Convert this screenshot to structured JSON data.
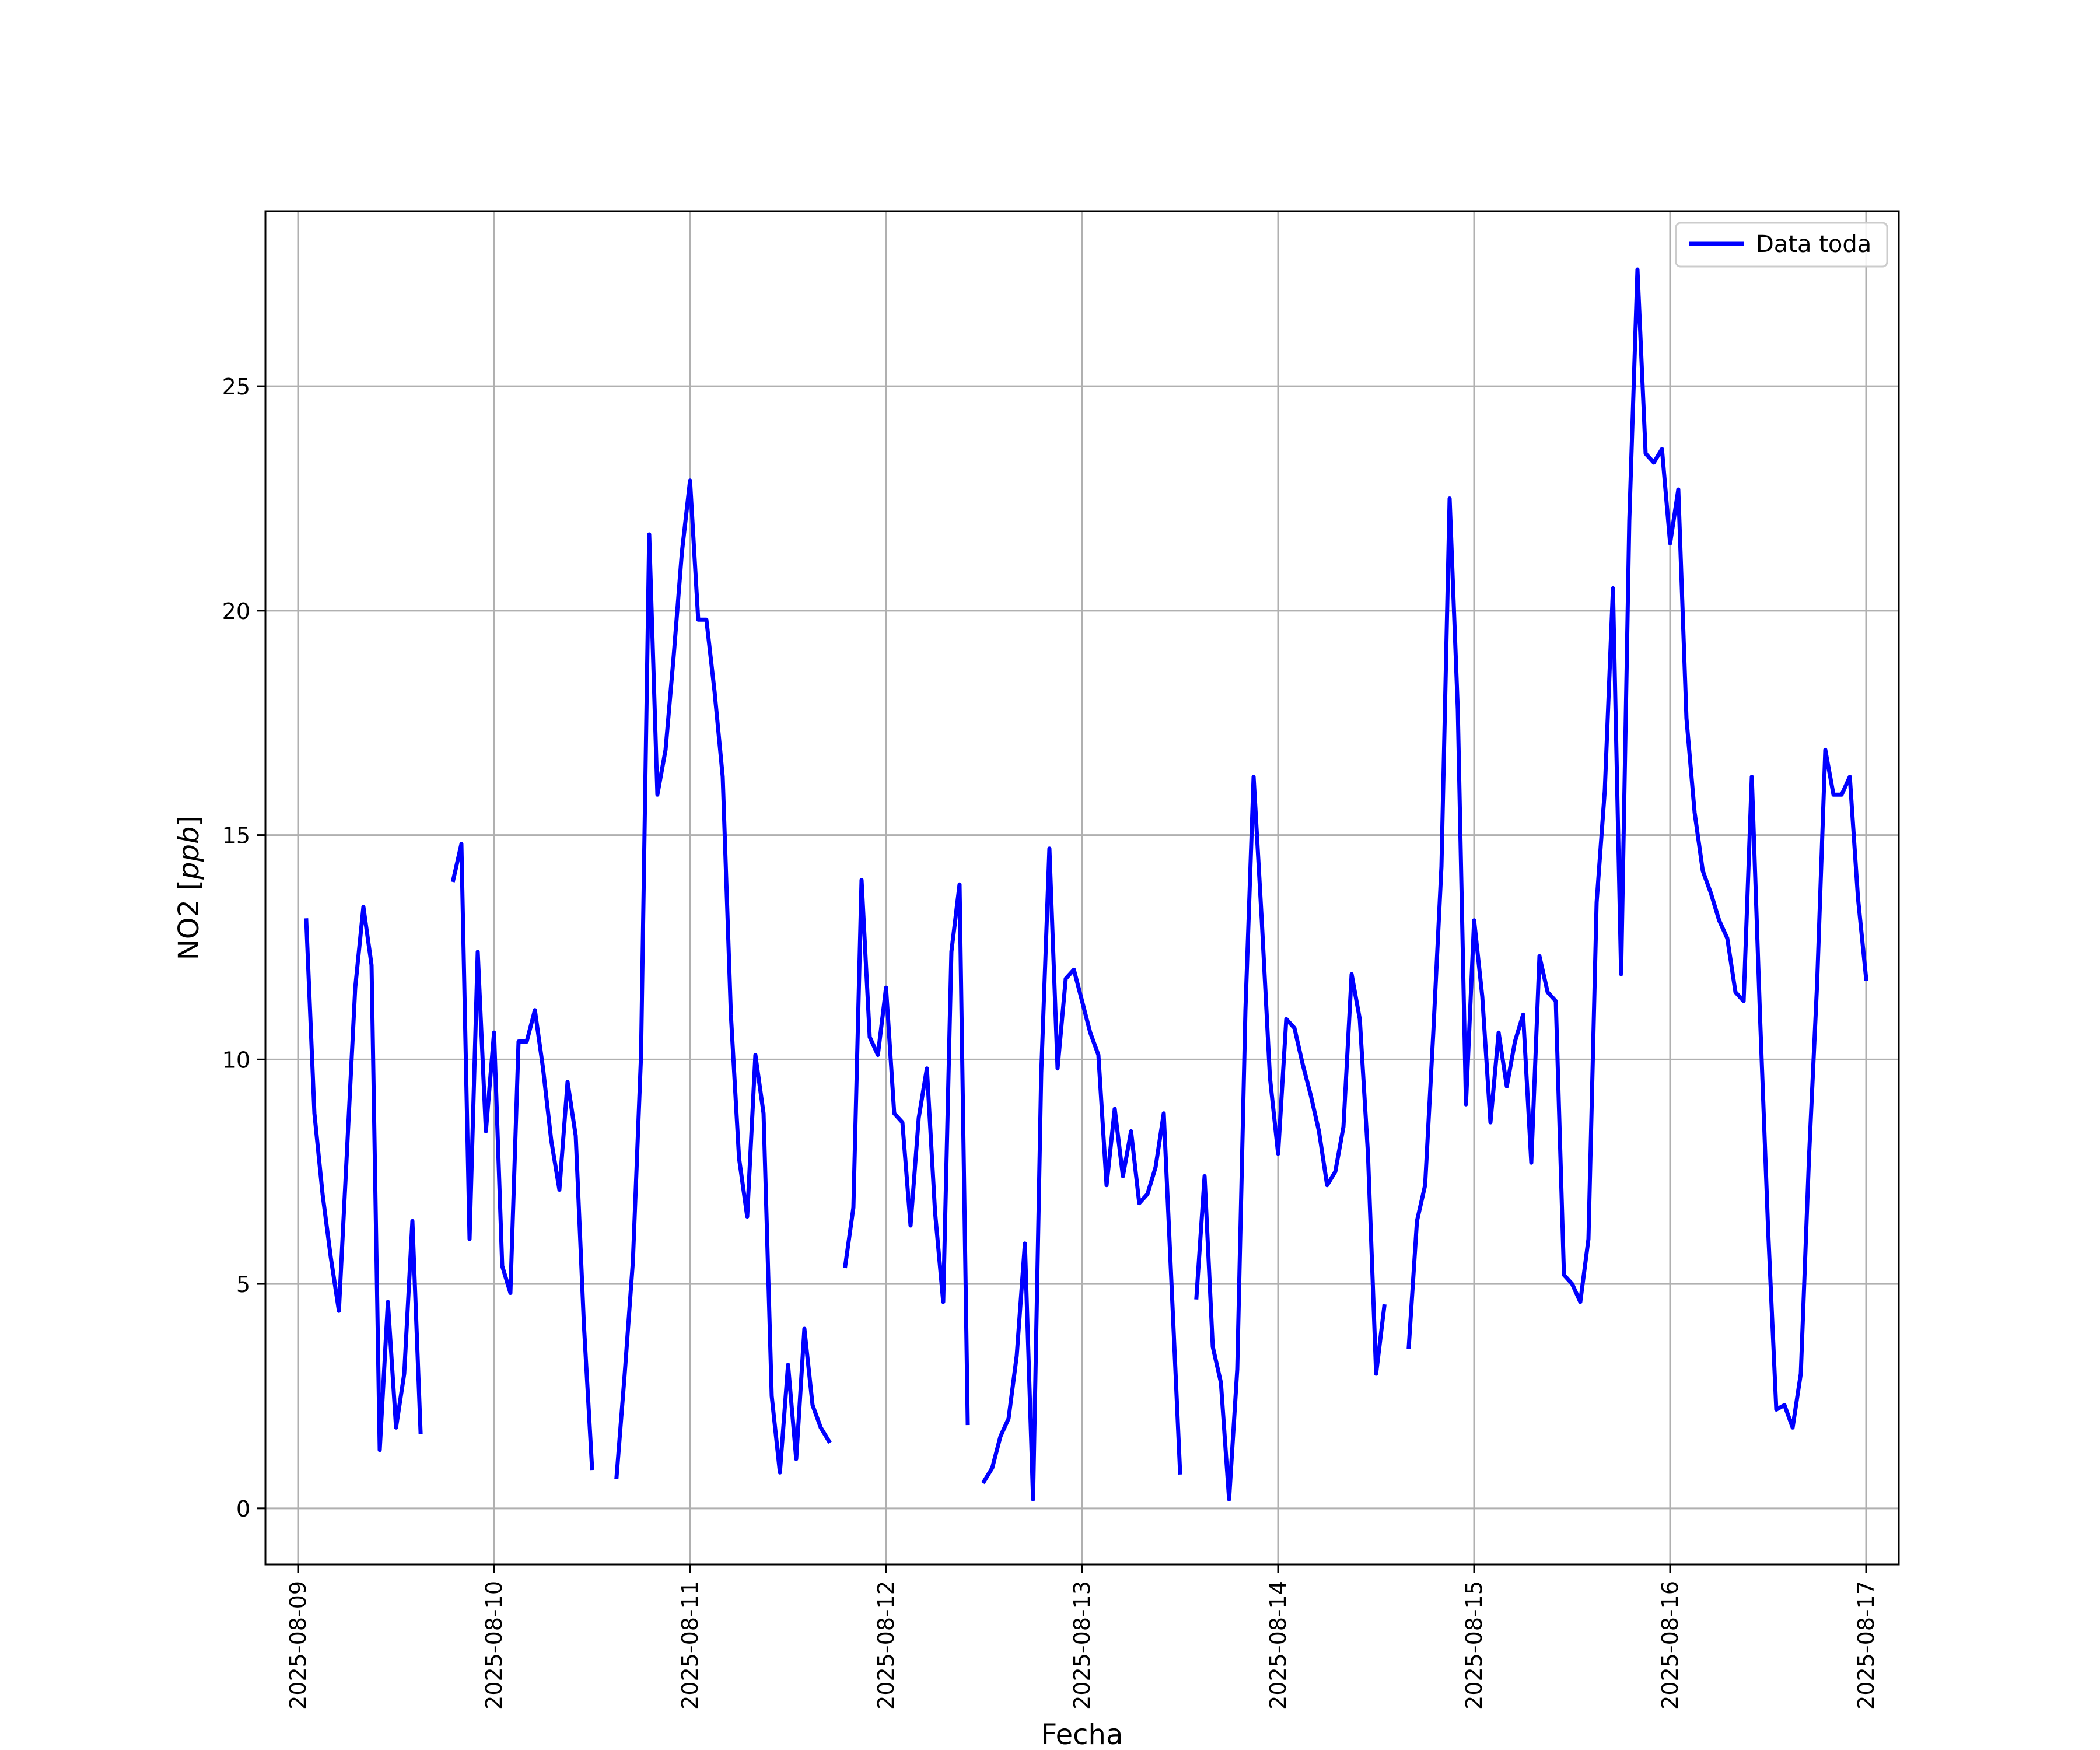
{
  "chart_data": {
    "type": "line",
    "title": "",
    "xlabel": "Fecha",
    "ylabel": "NO2 [ppb]",
    "ylabel_unit": "ppb",
    "grid": true,
    "legend_position": "top-right",
    "xlim": [
      "2025-08-08T20:00",
      "2025-08-17T04:00"
    ],
    "ylim": [
      -1.25,
      28.9
    ],
    "x_ticks": [
      "2025-08-09",
      "2025-08-10",
      "2025-08-11",
      "2025-08-12",
      "2025-08-13",
      "2025-08-14",
      "2025-08-15",
      "2025-08-16",
      "2025-08-17"
    ],
    "y_ticks": [
      0,
      5,
      10,
      15,
      20,
      25
    ],
    "series": [
      {
        "name": "Data toda",
        "color": "#0000ff",
        "segments": [
          [
            [
              "2025-08-09T01:00",
              13.1
            ],
            [
              "2025-08-09T02:00",
              8.8
            ],
            [
              "2025-08-09T03:00",
              7.0
            ],
            [
              "2025-08-09T04:00",
              5.6
            ],
            [
              "2025-08-09T05:00",
              4.4
            ],
            [
              "2025-08-09T06:00",
              8.0
            ],
            [
              "2025-08-09T07:00",
              11.6
            ],
            [
              "2025-08-09T08:00",
              13.4
            ],
            [
              "2025-08-09T09:00",
              12.1
            ],
            [
              "2025-08-09T10:00",
              1.3
            ],
            [
              "2025-08-09T11:00",
              4.6
            ],
            [
              "2025-08-09T12:00",
              1.8
            ],
            [
              "2025-08-09T13:00",
              3.0
            ],
            [
              "2025-08-09T14:00",
              6.4
            ],
            [
              "2025-08-09T15:00",
              1.7
            ]
          ],
          [
            [
              "2025-08-09T19:00",
              14.0
            ],
            [
              "2025-08-09T20:00",
              14.8
            ],
            [
              "2025-08-09T21:00",
              6.0
            ],
            [
              "2025-08-09T22:00",
              12.4
            ],
            [
              "2025-08-09T23:00",
              8.4
            ],
            [
              "2025-08-10T00:00",
              10.6
            ],
            [
              "2025-08-10T01:00",
              5.4
            ],
            [
              "2025-08-10T02:00",
              4.8
            ],
            [
              "2025-08-10T03:00",
              10.4
            ],
            [
              "2025-08-10T04:00",
              10.4
            ],
            [
              "2025-08-10T05:00",
              11.1
            ],
            [
              "2025-08-10T06:00",
              9.8
            ],
            [
              "2025-08-10T07:00",
              8.2
            ],
            [
              "2025-08-10T08:00",
              7.1
            ],
            [
              "2025-08-10T09:00",
              9.5
            ],
            [
              "2025-08-10T10:00",
              8.3
            ],
            [
              "2025-08-10T11:00",
              4.1
            ],
            [
              "2025-08-10T12:00",
              0.9
            ]
          ],
          [
            [
              "2025-08-10T15:00",
              0.7
            ],
            [
              "2025-08-10T16:00",
              3.0
            ],
            [
              "2025-08-10T17:00",
              5.5
            ],
            [
              "2025-08-10T18:00",
              10.1
            ],
            [
              "2025-08-10T19:00",
              21.7
            ],
            [
              "2025-08-10T20:00",
              15.9
            ],
            [
              "2025-08-10T21:00",
              16.9
            ],
            [
              "2025-08-10T22:00",
              19.0
            ],
            [
              "2025-08-10T23:00",
              21.3
            ],
            [
              "2025-08-11T00:00",
              22.9
            ],
            [
              "2025-08-11T01:00",
              19.8
            ],
            [
              "2025-08-11T02:00",
              19.8
            ],
            [
              "2025-08-11T03:00",
              18.2
            ],
            [
              "2025-08-11T04:00",
              16.3
            ],
            [
              "2025-08-11T05:00",
              11.0
            ],
            [
              "2025-08-11T06:00",
              7.8
            ],
            [
              "2025-08-11T07:00",
              6.5
            ],
            [
              "2025-08-11T08:00",
              10.1
            ],
            [
              "2025-08-11T09:00",
              8.8
            ],
            [
              "2025-08-11T10:00",
              2.5
            ],
            [
              "2025-08-11T11:00",
              0.8
            ],
            [
              "2025-08-11T12:00",
              3.2
            ],
            [
              "2025-08-11T13:00",
              1.1
            ],
            [
              "2025-08-11T14:00",
              4.0
            ],
            [
              "2025-08-11T15:00",
              2.3
            ],
            [
              "2025-08-11T16:00",
              1.8
            ],
            [
              "2025-08-11T17:00",
              1.5
            ]
          ],
          [
            [
              "2025-08-11T19:00",
              5.4
            ],
            [
              "2025-08-11T20:00",
              6.7
            ],
            [
              "2025-08-11T21:00",
              14.0
            ],
            [
              "2025-08-11T22:00",
              10.5
            ],
            [
              "2025-08-11T23:00",
              10.1
            ],
            [
              "2025-08-12T00:00",
              11.6
            ],
            [
              "2025-08-12T01:00",
              8.8
            ],
            [
              "2025-08-12T02:00",
              8.6
            ],
            [
              "2025-08-12T03:00",
              6.3
            ],
            [
              "2025-08-12T04:00",
              8.7
            ],
            [
              "2025-08-12T05:00",
              9.8
            ],
            [
              "2025-08-12T06:00",
              6.6
            ],
            [
              "2025-08-12T07:00",
              4.6
            ],
            [
              "2025-08-12T08:00",
              12.4
            ],
            [
              "2025-08-12T09:00",
              13.9
            ],
            [
              "2025-08-12T10:00",
              1.9
            ]
          ],
          [
            [
              "2025-08-12T12:00",
              0.6
            ],
            [
              "2025-08-12T13:00",
              0.9
            ],
            [
              "2025-08-12T14:00",
              1.6
            ],
            [
              "2025-08-12T15:00",
              2.0
            ],
            [
              "2025-08-12T16:00",
              3.4
            ],
            [
              "2025-08-12T17:00",
              5.9
            ],
            [
              "2025-08-12T18:00",
              0.2
            ],
            [
              "2025-08-12T19:00",
              9.7
            ],
            [
              "2025-08-12T20:00",
              14.7
            ],
            [
              "2025-08-12T21:00",
              9.8
            ],
            [
              "2025-08-12T22:00",
              11.8
            ],
            [
              "2025-08-12T23:00",
              12.0
            ],
            [
              "2025-08-13T00:00",
              11.3
            ],
            [
              "2025-08-13T01:00",
              10.6
            ],
            [
              "2025-08-13T02:00",
              10.1
            ],
            [
              "2025-08-13T03:00",
              7.2
            ],
            [
              "2025-08-13T04:00",
              8.9
            ],
            [
              "2025-08-13T05:00",
              7.4
            ],
            [
              "2025-08-13T06:00",
              8.4
            ],
            [
              "2025-08-13T07:00",
              6.8
            ],
            [
              "2025-08-13T08:00",
              7.0
            ],
            [
              "2025-08-13T09:00",
              7.6
            ],
            [
              "2025-08-13T10:00",
              8.8
            ],
            [
              "2025-08-13T11:00",
              4.8
            ],
            [
              "2025-08-13T12:00",
              0.8
            ]
          ],
          [
            [
              "2025-08-13T14:00",
              4.7
            ],
            [
              "2025-08-13T15:00",
              7.4
            ],
            [
              "2025-08-13T16:00",
              3.6
            ],
            [
              "2025-08-13T17:00",
              2.8
            ],
            [
              "2025-08-13T18:00",
              0.2
            ],
            [
              "2025-08-13T19:00",
              3.1
            ],
            [
              "2025-08-13T20:00",
              11.1
            ],
            [
              "2025-08-13T21:00",
              16.3
            ],
            [
              "2025-08-13T22:00",
              13.1
            ],
            [
              "2025-08-13T23:00",
              9.6
            ],
            [
              "2025-08-14T00:00",
              7.9
            ],
            [
              "2025-08-14T01:00",
              10.9
            ],
            [
              "2025-08-14T02:00",
              10.7
            ],
            [
              "2025-08-14T03:00",
              9.9
            ],
            [
              "2025-08-14T04:00",
              9.2
            ],
            [
              "2025-08-14T05:00",
              8.4
            ],
            [
              "2025-08-14T06:00",
              7.2
            ],
            [
              "2025-08-14T07:00",
              7.5
            ],
            [
              "2025-08-14T08:00",
              8.5
            ],
            [
              "2025-08-14T09:00",
              11.9
            ],
            [
              "2025-08-14T10:00",
              10.9
            ],
            [
              "2025-08-14T11:00",
              7.9
            ],
            [
              "2025-08-14T12:00",
              3.0
            ],
            [
              "2025-08-14T13:00",
              4.5
            ]
          ],
          [
            [
              "2025-08-14T16:00",
              3.6
            ],
            [
              "2025-08-14T17:00",
              6.4
            ],
            [
              "2025-08-14T18:00",
              7.2
            ],
            [
              "2025-08-14T19:00",
              10.6
            ],
            [
              "2025-08-14T20:00",
              14.3
            ],
            [
              "2025-08-14T21:00",
              22.5
            ],
            [
              "2025-08-14T22:00",
              17.8
            ],
            [
              "2025-08-14T23:00",
              9.0
            ],
            [
              "2025-08-15T00:00",
              13.1
            ],
            [
              "2025-08-15T01:00",
              11.4
            ],
            [
              "2025-08-15T02:00",
              8.6
            ],
            [
              "2025-08-15T03:00",
              10.6
            ],
            [
              "2025-08-15T04:00",
              9.4
            ],
            [
              "2025-08-15T05:00",
              10.4
            ],
            [
              "2025-08-15T06:00",
              11.0
            ],
            [
              "2025-08-15T07:00",
              7.7
            ],
            [
              "2025-08-15T08:00",
              12.3
            ],
            [
              "2025-08-15T09:00",
              11.5
            ],
            [
              "2025-08-15T10:00",
              11.3
            ],
            [
              "2025-08-15T11:00",
              5.2
            ],
            [
              "2025-08-15T12:00",
              5.0
            ],
            [
              "2025-08-15T13:00",
              4.6
            ],
            [
              "2025-08-15T14:00",
              6.0
            ],
            [
              "2025-08-15T15:00",
              13.5
            ],
            [
              "2025-08-15T16:00",
              16.0
            ],
            [
              "2025-08-15T17:00",
              20.5
            ],
            [
              "2025-08-15T18:00",
              11.9
            ],
            [
              "2025-08-15T19:00",
              22.0
            ],
            [
              "2025-08-15T20:00",
              27.6
            ],
            [
              "2025-08-15T21:00",
              23.5
            ],
            [
              "2025-08-15T22:00",
              23.3
            ],
            [
              "2025-08-15T23:00",
              23.6
            ],
            [
              "2025-08-16T00:00",
              21.5
            ],
            [
              "2025-08-16T01:00",
              22.7
            ],
            [
              "2025-08-16T02:00",
              17.6
            ],
            [
              "2025-08-16T03:00",
              15.5
            ],
            [
              "2025-08-16T04:00",
              14.2
            ],
            [
              "2025-08-16T05:00",
              13.7
            ],
            [
              "2025-08-16T06:00",
              13.1
            ],
            [
              "2025-08-16T07:00",
              12.7
            ],
            [
              "2025-08-16T08:00",
              11.5
            ],
            [
              "2025-08-16T09:00",
              11.3
            ],
            [
              "2025-08-16T10:00",
              16.3
            ],
            [
              "2025-08-16T11:00",
              11.0
            ],
            [
              "2025-08-16T12:00",
              6.2
            ],
            [
              "2025-08-16T13:00",
              2.2
            ],
            [
              "2025-08-16T14:00",
              2.3
            ],
            [
              "2025-08-16T15:00",
              1.8
            ],
            [
              "2025-08-16T16:00",
              3.0
            ],
            [
              "2025-08-16T17:00",
              7.8
            ],
            [
              "2025-08-16T18:00",
              11.7
            ],
            [
              "2025-08-16T19:00",
              16.9
            ],
            [
              "2025-08-16T20:00",
              15.9
            ],
            [
              "2025-08-16T21:00",
              15.9
            ],
            [
              "2025-08-16T22:00",
              16.3
            ],
            [
              "2025-08-16T23:00",
              13.6
            ],
            [
              "2025-08-17T00:00",
              11.8
            ]
          ]
        ]
      }
    ]
  }
}
